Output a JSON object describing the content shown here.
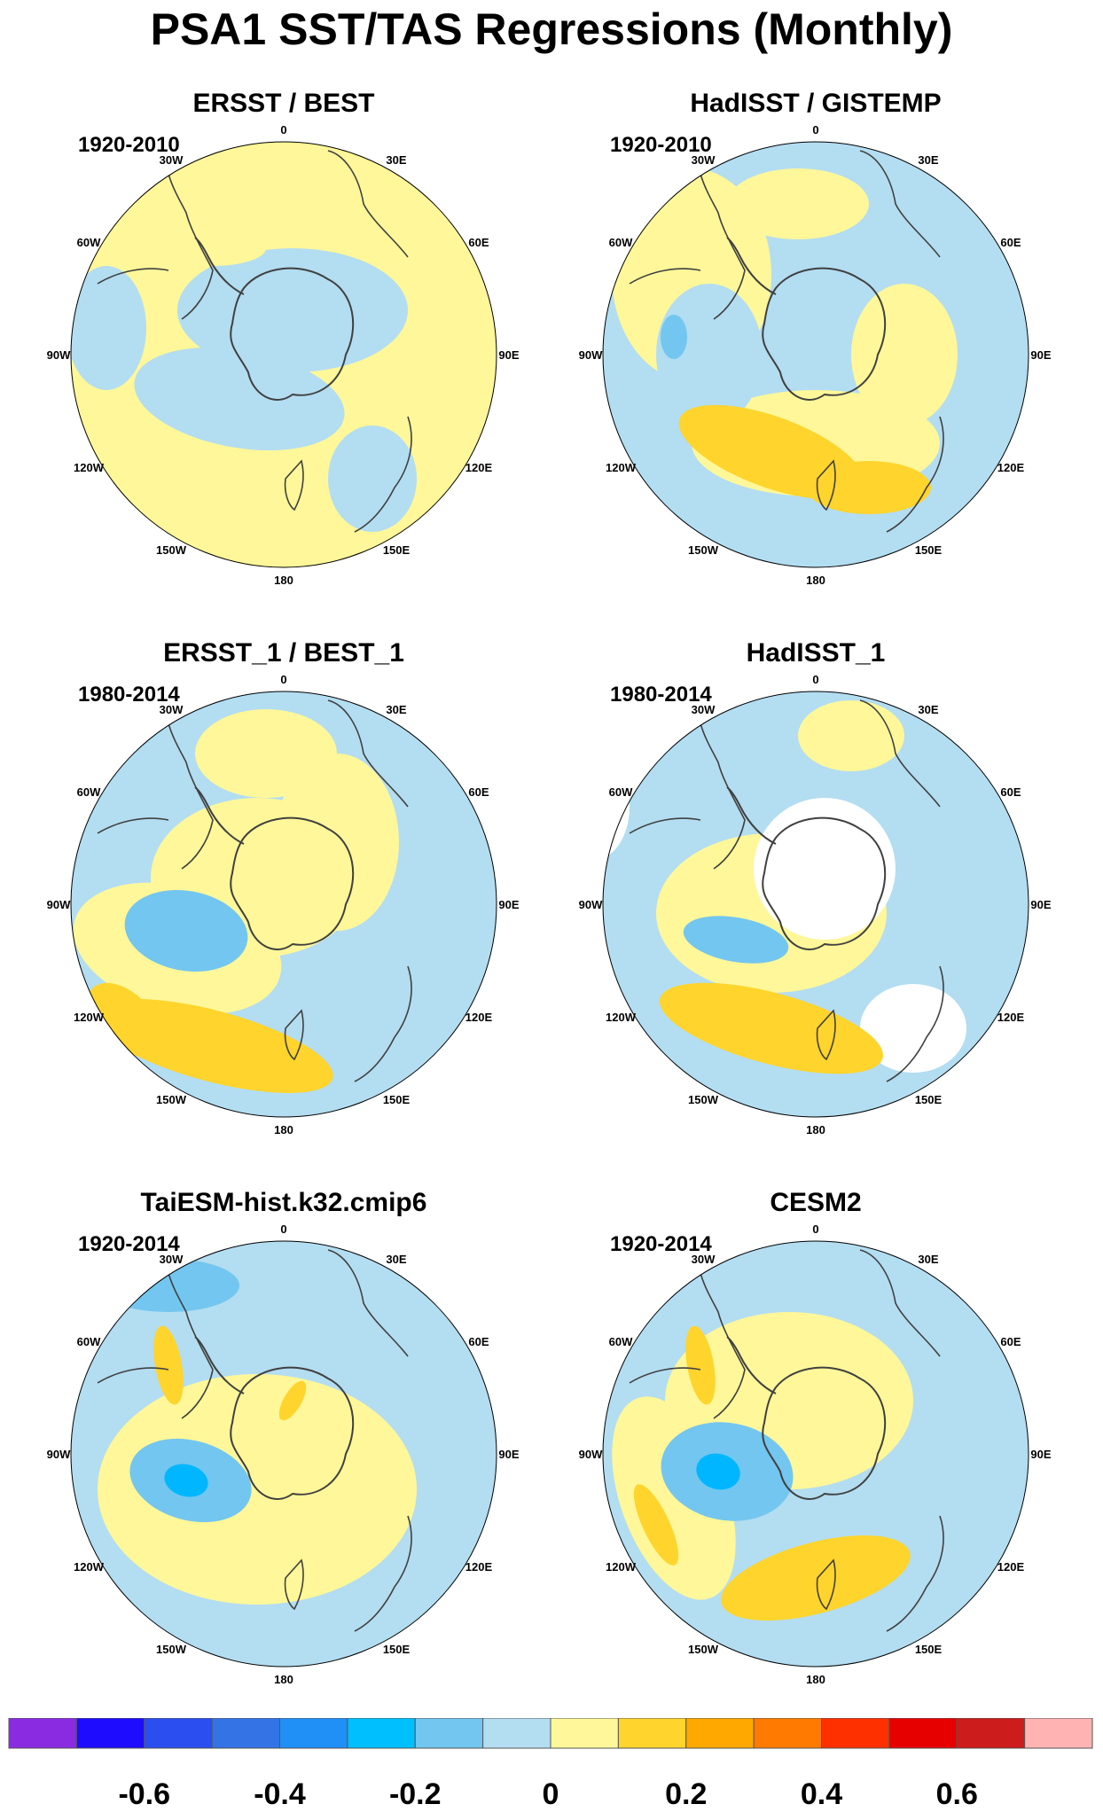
{
  "title": "PSA1 SST/TAS Regressions (Monthly)",
  "colors": {
    "neg_weak": "#b3ddf1",
    "neg_mid": "#73c6ef",
    "neg_strong": "#50b0ee",
    "neg_core": "#00b7ff",
    "pos_weak": "#fff799",
    "pos_mid": "#ffd42c",
    "pos_strong": "#ffa800",
    "coast": "#404040",
    "missing": "#ffffff"
  },
  "longitude_labels": [
    "0",
    "30E",
    "60E",
    "90E",
    "120E",
    "150E",
    "180",
    "150W",
    "120W",
    "90W",
    "60W",
    "30W"
  ],
  "panels": [
    {
      "title": "ERSST / BEST",
      "period": "1920-2010",
      "pattern": 0
    },
    {
      "title": "HadISST / GISTEMP",
      "period": "1920-2010",
      "pattern": 1
    },
    {
      "title": "ERSST_1 / BEST_1",
      "period": "1980-2014",
      "pattern": 2
    },
    {
      "title": "HadISST_1",
      "period": "1980-2014",
      "pattern": 3
    },
    {
      "title": "TaiESM-hist.k32.cmip6",
      "period": "1920-2014",
      "pattern": 4
    },
    {
      "title": "CESM2",
      "period": "1920-2014",
      "pattern": 5
    }
  ],
  "colorbar": {
    "colors": [
      "#8a2be2",
      "#1e0cff",
      "#2a4ef0",
      "#3373e6",
      "#2090f6",
      "#00bfff",
      "#73c6ef",
      "#b3ddf1",
      "#fff799",
      "#ffd42c",
      "#ffa800",
      "#ff7a00",
      "#ff3000",
      "#e60000",
      "#cc1c1c",
      "#ffb3b3"
    ],
    "labels": [
      "-0.6",
      "-0.4",
      "-0.2",
      "0",
      "0.2",
      "0.4",
      "0.6"
    ]
  }
}
